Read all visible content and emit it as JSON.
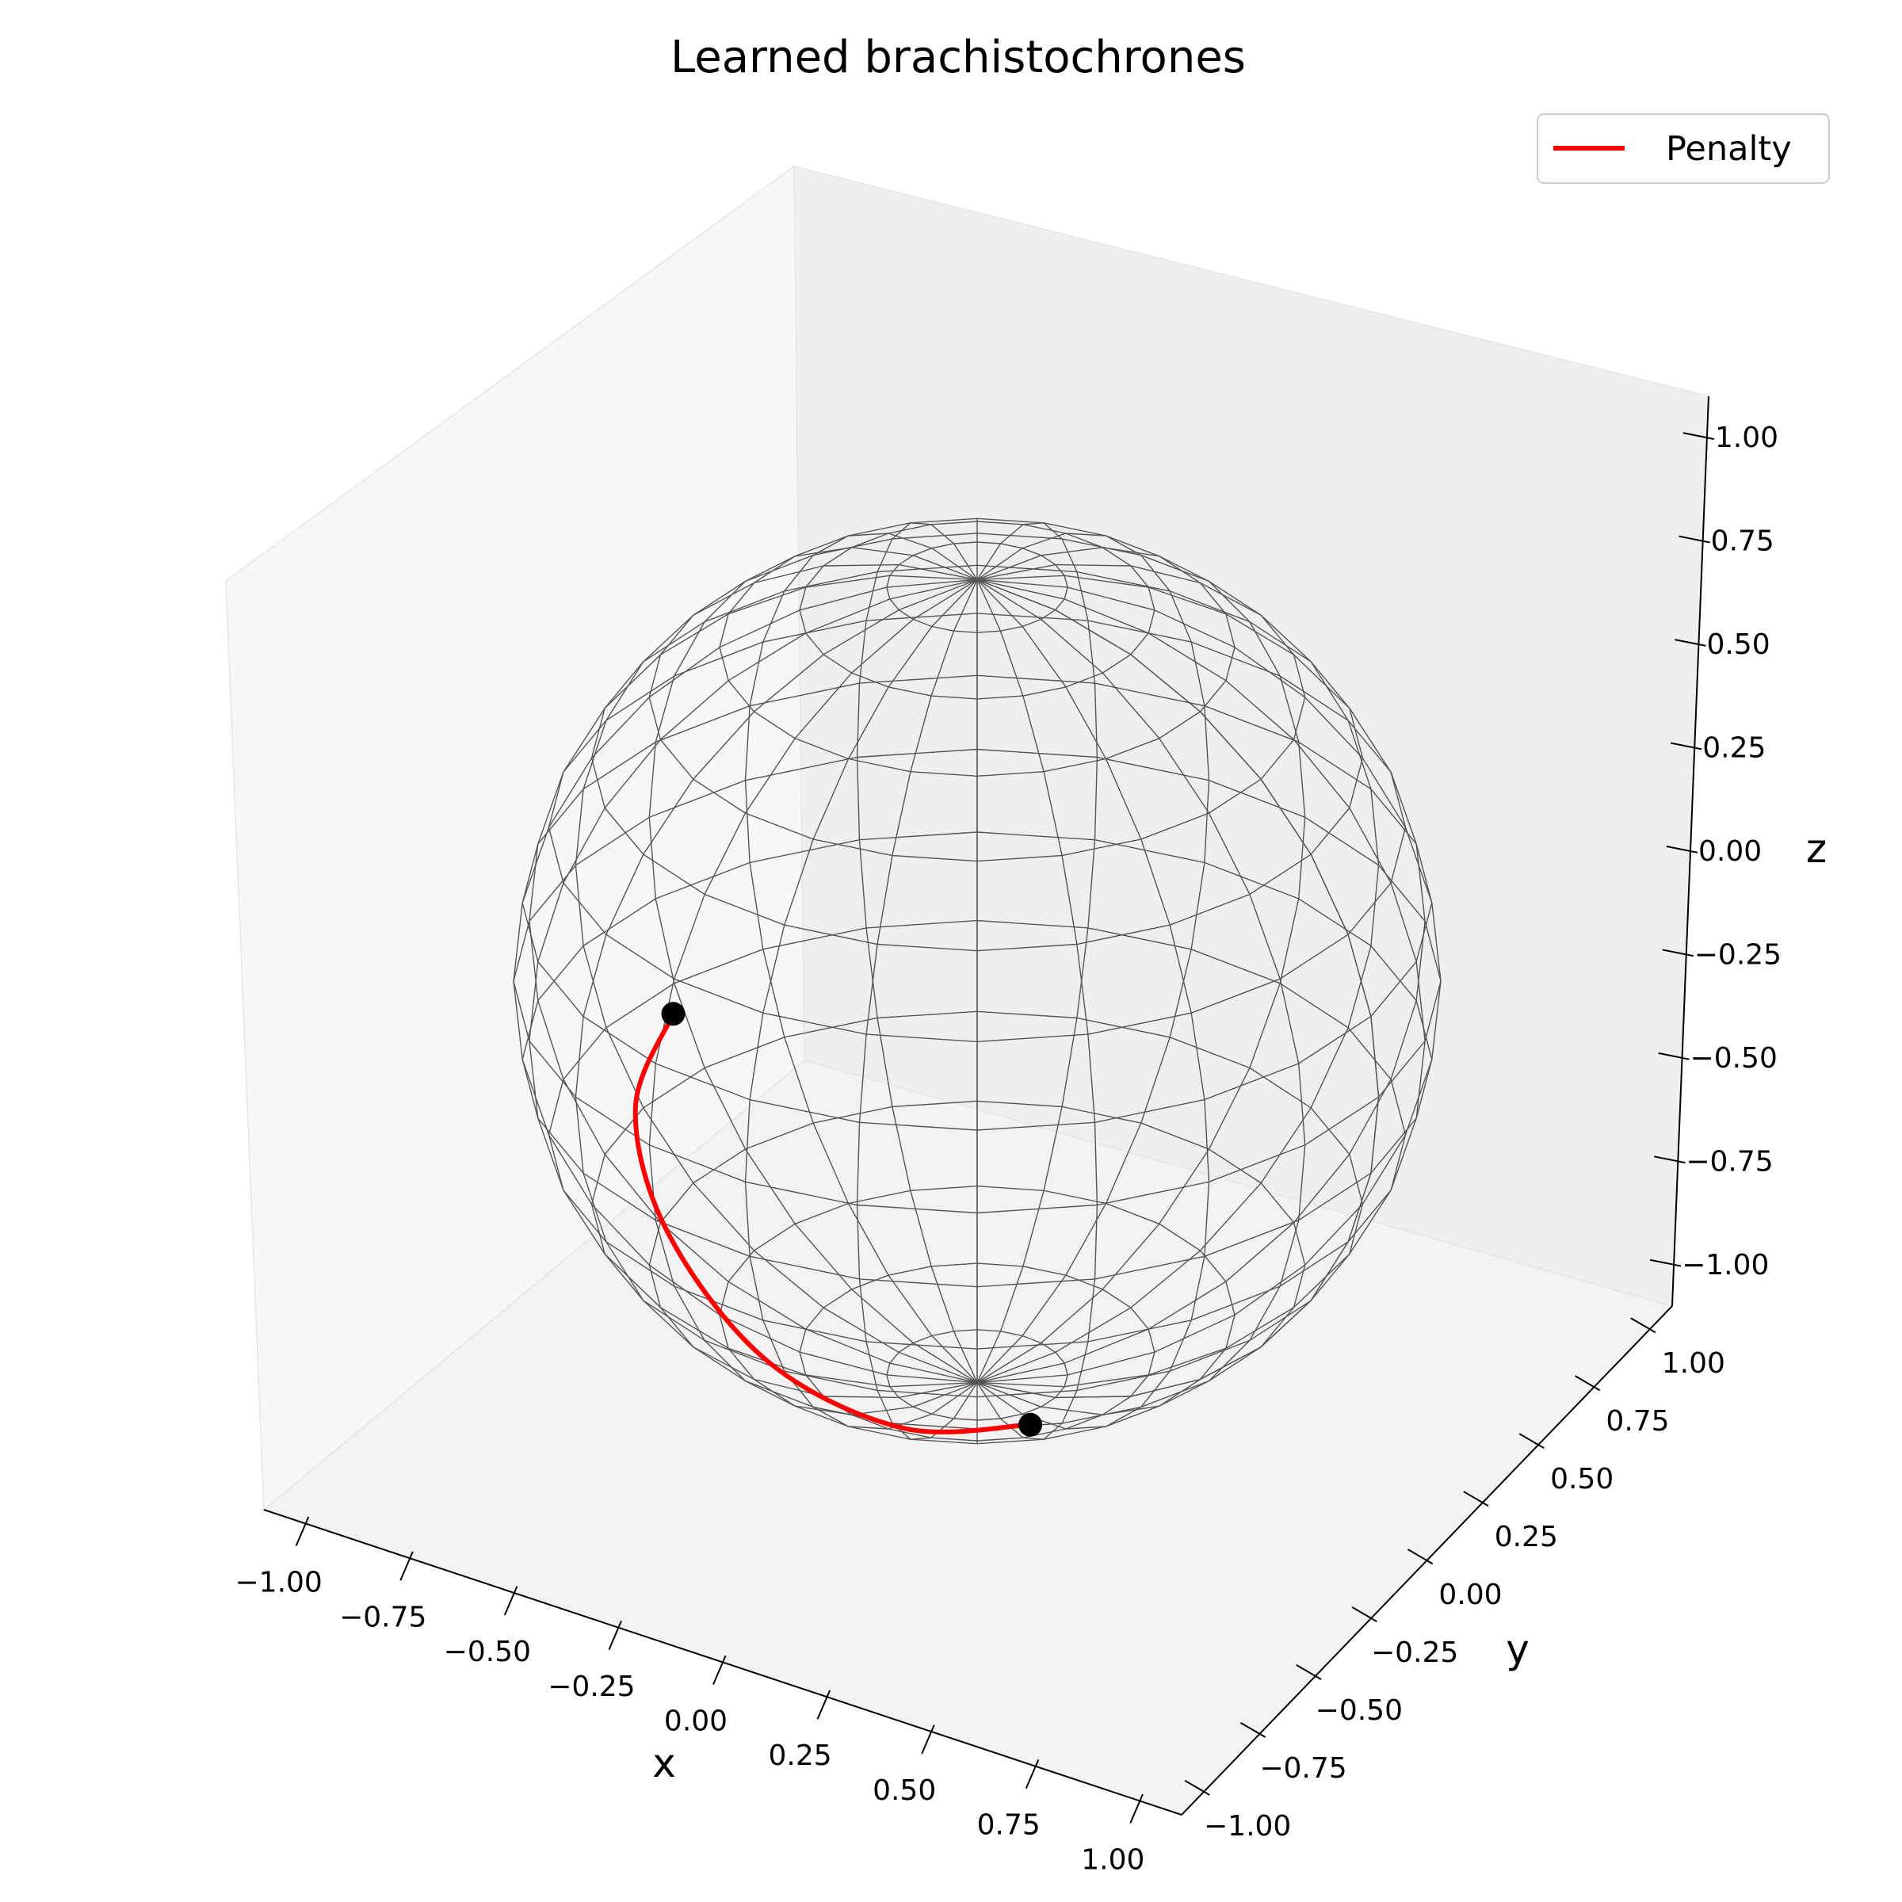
{
  "chart_data": {
    "type": "line",
    "projection": "3d",
    "title": "Learned brachistochrones",
    "xlabel": "x",
    "ylabel": "y",
    "zlabel": "z",
    "xlim": [
      -1.1,
      1.1
    ],
    "ylim": [
      -1.1,
      1.1
    ],
    "zlim": [
      -1.1,
      1.1
    ],
    "x_ticks": [
      "−1.00",
      "−0.75",
      "−0.50",
      "−0.25",
      "0.00",
      "0.25",
      "0.50",
      "0.75",
      "1.00"
    ],
    "y_ticks": [
      "−1.00",
      "−0.75",
      "−0.50",
      "−0.25",
      "0.00",
      "0.25",
      "0.50",
      "0.75",
      "1.00"
    ],
    "z_ticks": [
      "−1.00",
      "−0.75",
      "−0.50",
      "−0.25",
      "0.00",
      "0.25",
      "0.50",
      "0.75",
      "1.00"
    ],
    "surface": {
      "shape": "unit sphere wireframe",
      "radius": 1.0,
      "color": "#555555"
    },
    "legend": {
      "position": "top-right",
      "entries": [
        "Penalty"
      ]
    },
    "series": [
      {
        "name": "Penalty",
        "color": "#ff0000",
        "points": [
          {
            "x": -0.22,
            "y": -0.93,
            "z": 0.32
          },
          {
            "x": -0.32,
            "y": -0.92,
            "z": 0.05
          },
          {
            "x": -0.25,
            "y": -0.9,
            "z": -0.25
          },
          {
            "x": -0.05,
            "y": -0.82,
            "z": -0.55
          },
          {
            "x": 0.2,
            "y": -0.67,
            "z": -0.72
          },
          {
            "x": 0.45,
            "y": -0.55,
            "z": -0.7
          }
        ]
      }
    ],
    "endpoints": [
      {
        "x": -0.22,
        "y": -0.93,
        "z": 0.32
      },
      {
        "x": 0.45,
        "y": -0.55,
        "z": -0.7
      }
    ],
    "endpoint_color": "#000000"
  }
}
